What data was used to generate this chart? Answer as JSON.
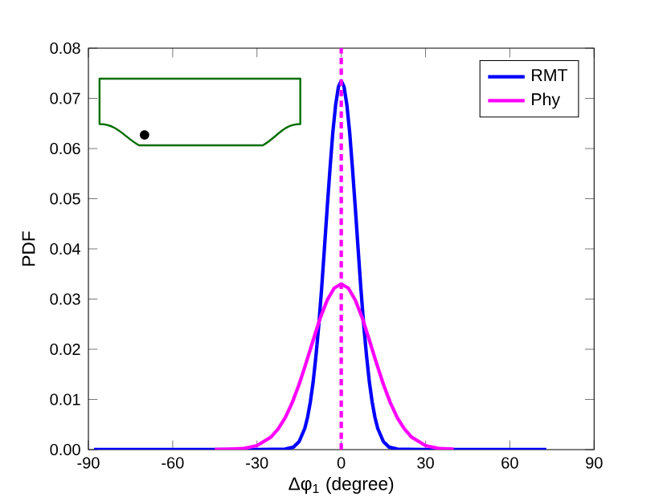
{
  "chart_data": {
    "type": "line",
    "xlabel": "Δφ$_{1}$ (degree)",
    "ylabel": "PDF",
    "xlim": [
      -90,
      90
    ],
    "xticks": [
      -90,
      -60,
      -30,
      0,
      30,
      60,
      90
    ],
    "ylim": [
      0,
      0.08
    ],
    "yticks": [
      {
        "value": 0,
        "label": "0.00"
      },
      {
        "value": 0.01,
        "label": "0.01"
      },
      {
        "value": 0.02,
        "label": "0.02"
      },
      {
        "value": 0.03,
        "label": "0.03"
      },
      {
        "value": 0.04,
        "label": "0.04"
      },
      {
        "value": 0.05,
        "label": "0.05"
      },
      {
        "value": 0.06,
        "label": "0.06"
      },
      {
        "value": 0.07,
        "label": "0.07"
      },
      {
        "value": 0.08,
        "label": "0.08"
      }
    ],
    "grid": false,
    "legend": "top right",
    "marker": "none",
    "line_style": "solid",
    "ref_lines": [
      {
        "axis": "x",
        "value": 0,
        "color": "#ff00ff",
        "line_style": "dashed"
      }
    ],
    "series": [
      {
        "name": "RMT",
        "color": "#0000ff",
        "x": [
          -88,
          -30,
          -20,
          -17,
          -15,
          -13,
          -12,
          -11,
          -10,
          -9,
          -8,
          -7,
          -6,
          -5,
          -4,
          -3,
          -2,
          -1,
          0,
          1,
          2,
          3,
          4,
          5,
          6,
          7,
          8,
          9,
          10,
          11,
          12,
          13,
          15,
          17,
          20,
          30,
          73
        ],
        "values": [
          0,
          0,
          0.0001,
          0.0005,
          0.0016,
          0.0042,
          0.0064,
          0.0095,
          0.0135,
          0.0187,
          0.0248,
          0.032,
          0.04,
          0.0482,
          0.056,
          0.0632,
          0.0687,
          0.0723,
          0.0735,
          0.0723,
          0.0687,
          0.0632,
          0.056,
          0.0482,
          0.04,
          0.032,
          0.0248,
          0.0187,
          0.0135,
          0.0095,
          0.0064,
          0.0042,
          0.0016,
          0.0005,
          0.0001,
          0,
          0
        ]
      },
      {
        "name": "Phy",
        "color": "#ff00ff",
        "x": [
          -45,
          -40,
          -35,
          -30,
          -25,
          -22.5,
          -20,
          -17.5,
          -15,
          -12.5,
          -10,
          -7.5,
          -5,
          -2.5,
          0,
          2.5,
          5,
          7.5,
          10,
          12.5,
          15,
          17.5,
          20,
          22.5,
          25,
          30,
          35,
          40
        ],
        "values": [
          0,
          0.0001,
          0.0002,
          0.0008,
          0.0025,
          0.0041,
          0.0063,
          0.0093,
          0.013,
          0.0173,
          0.0218,
          0.0262,
          0.0298,
          0.0322,
          0.033,
          0.0322,
          0.0298,
          0.0262,
          0.0218,
          0.0173,
          0.013,
          0.0093,
          0.0063,
          0.0041,
          0.0025,
          0.0008,
          0.0002,
          0.0001
        ]
      }
    ]
  }
}
